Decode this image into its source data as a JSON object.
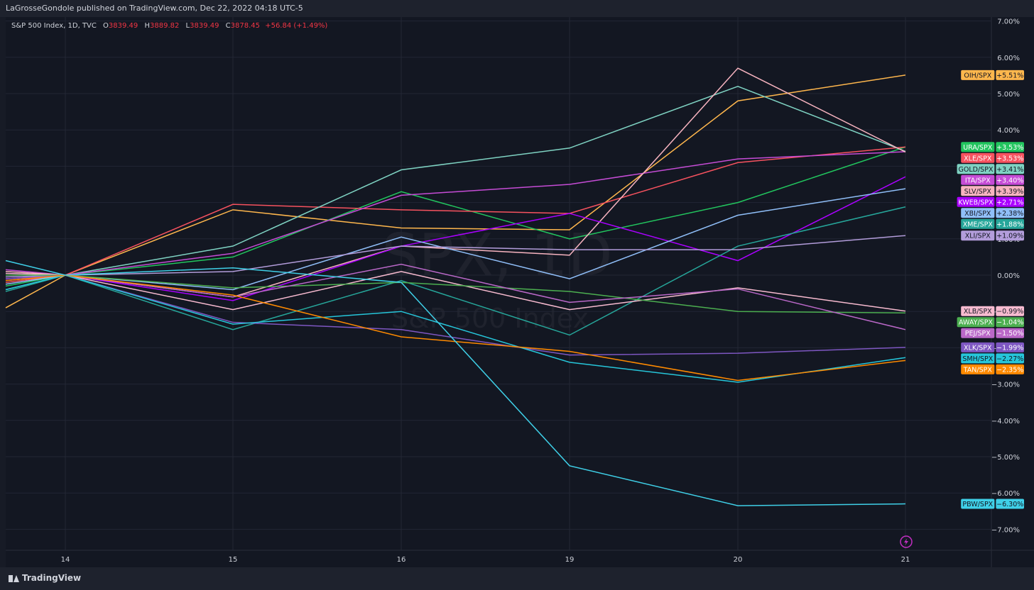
{
  "header": {
    "published_text": "LaGrosseGondole published on TradingView.com, Dec 22, 2022 04:18 UTC-5"
  },
  "legend": {
    "symbol": "S&P 500 Index, 1D, TVC",
    "open_label": "O",
    "open_value": "3839.49",
    "high_label": "H",
    "high_value": "3889.82",
    "low_label": "L",
    "low_value": "3839.49",
    "close_label": "C",
    "close_value": "3878.45",
    "change": "+56.84 (+1.49%)"
  },
  "watermark": {
    "main": "SPX, 1D",
    "sub": "S&P 500 Index"
  },
  "footer": {
    "brand": "TradingView"
  },
  "chart_data": {
    "type": "line",
    "categories": [
      "14",
      "15",
      "16",
      "19",
      "20",
      "21"
    ],
    "y_tick_labels": [
      "7.00%",
      "6.00%",
      "5.00%",
      "4.00%",
      "3.00%",
      "2.00%",
      "1.00%",
      "0.00%",
      "−1.00%",
      "−2.00%",
      "−3.00%",
      "−4.00%",
      "−5.00%",
      "−6.00%",
      "−7.00%"
    ],
    "ylim": [
      -7.7,
      7.0
    ],
    "grid": true,
    "series": [
      {
        "name": "OIH/SPX",
        "value_label": "+5.51%",
        "color": "#ffb74d",
        "text_color": "#131722",
        "start": -0.9,
        "values": [
          0,
          1.8,
          1.3,
          1.25,
          4.8,
          5.51
        ]
      },
      {
        "name": "URA/SPX",
        "value_label": "+3.53%",
        "color": "#22c55e",
        "text_color": "#ffffff",
        "start": -0.3,
        "values": [
          0,
          0.5,
          2.3,
          1.0,
          2.0,
          3.53
        ]
      },
      {
        "name": "XLE/SPX",
        "value_label": "+3.53%",
        "color": "#f7525f",
        "text_color": "#ffffff",
        "start": -0.2,
        "values": [
          0,
          1.95,
          1.8,
          1.7,
          3.1,
          3.53
        ]
      },
      {
        "name": "GOLD/SPX",
        "value_label": "+3.41%",
        "color": "#7fd3c3",
        "text_color": "#131722",
        "start": -0.4,
        "values": [
          0,
          0.8,
          2.9,
          3.5,
          5.2,
          3.41
        ]
      },
      {
        "name": "ITA/SPX",
        "value_label": "+3.40%",
        "color": "#c64cd6",
        "text_color": "#ffffff",
        "start": 0.15,
        "values": [
          0,
          0.6,
          2.2,
          2.5,
          3.2,
          3.4
        ]
      },
      {
        "name": "SLV/SPX",
        "value_label": "+3.39%",
        "color": "#f8b4c0",
        "text_color": "#131722",
        "start": 0.1,
        "values": [
          0,
          -0.6,
          0.8,
          0.55,
          5.7,
          3.39
        ]
      },
      {
        "name": "KWEB/SPX",
        "value_label": "+2.71%",
        "color": "#aa00ff",
        "text_color": "#ffffff",
        "start": -0.1,
        "values": [
          0,
          -0.7,
          0.8,
          1.7,
          0.4,
          2.71
        ]
      },
      {
        "name": "XBI/SPX",
        "value_label": "+2.38%",
        "color": "#90bff9",
        "text_color": "#131722",
        "start": -0.25,
        "values": [
          0,
          -0.4,
          1.05,
          -0.1,
          1.65,
          2.38
        ]
      },
      {
        "name": "XME/SPX",
        "value_label": "+1.88%",
        "color": "#26a69a",
        "text_color": "#ffffff",
        "start": -0.45,
        "values": [
          0,
          -1.5,
          -0.15,
          -1.65,
          0.8,
          1.88
        ]
      },
      {
        "name": "XLI/SPX",
        "value_label": "+1.09%",
        "color": "#b39ddb",
        "text_color": "#131722",
        "start": -0.05,
        "values": [
          0,
          0.1,
          0.8,
          0.7,
          0.7,
          1.09
        ]
      },
      {
        "name": "XLB/SPX",
        "value_label": "−0.99%",
        "color": "#f8bbd0",
        "text_color": "#131722",
        "start": 0.05,
        "values": [
          0,
          -0.95,
          0.1,
          -0.95,
          -0.35,
          -0.99
        ]
      },
      {
        "name": "AWAY/SPX",
        "value_label": "−1.04%",
        "color": "#4caf50",
        "text_color": "#ffffff",
        "start": 0.0,
        "values": [
          0,
          -0.35,
          -0.2,
          -0.45,
          -1.0,
          -1.04
        ]
      },
      {
        "name": "PEJ/SPX",
        "value_label": "−1.50%",
        "color": "#ba68c8",
        "text_color": "#ffffff",
        "start": -0.15,
        "values": [
          0,
          -0.6,
          0.3,
          -0.75,
          -0.38,
          -1.5
        ]
      },
      {
        "name": "XLK/SPX",
        "value_label": "−1.99%",
        "color": "#7e57c2",
        "text_color": "#ffffff",
        "start": -0.1,
        "values": [
          0,
          -1.3,
          -1.5,
          -2.2,
          -2.15,
          -1.99
        ]
      },
      {
        "name": "SMH/SPX",
        "value_label": "−2.27%",
        "color": "#26c6da",
        "text_color": "#131722",
        "start": -0.4,
        "values": [
          0,
          -1.35,
          -1.0,
          -2.4,
          -2.95,
          -2.27
        ]
      },
      {
        "name": "TAN/SPX",
        "value_label": "−2.35%",
        "color": "#ff8a00",
        "text_color": "#ffffff",
        "start": -0.15,
        "values": [
          0,
          -0.55,
          -1.7,
          -2.1,
          -2.9,
          -2.35
        ]
      },
      {
        "name": "PBW/SPX",
        "value_label": "−6.30%",
        "color": "#3fd0e8",
        "text_color": "#131722",
        "start": 0.4,
        "values": [
          0,
          0.2,
          -0.2,
          -5.25,
          -6.35,
          -6.3
        ]
      }
    ]
  },
  "colors": {
    "background": "#131722",
    "frame": "#1e222d",
    "grid": "#232734",
    "text": "#d1d4dc",
    "flash_icon": "#c22ec2"
  },
  "icons": {
    "bottom_right": "lightning-icon"
  }
}
